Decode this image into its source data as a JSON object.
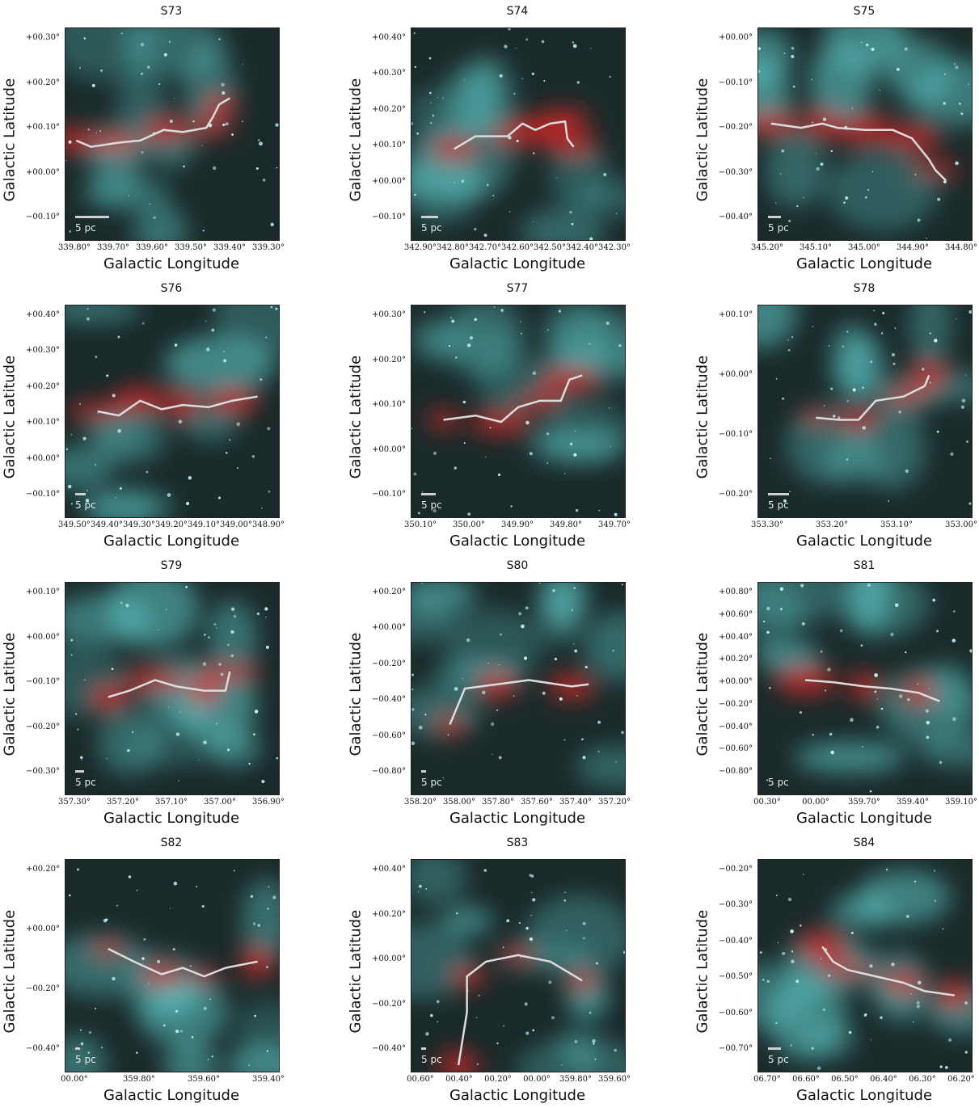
{
  "figure": {
    "xlabel": "Galactic Longitude",
    "ylabel": "Galactic Latitude",
    "scale_label": "5 pc"
  },
  "panels": [
    {
      "title": "S73",
      "xticks": [
        "339.80°",
        "339.70°",
        "339.60°",
        "339.50°",
        "339.40°",
        "339.30°"
      ],
      "yticks": [
        "+00.30°",
        "+00.20°",
        "+00.10°",
        "+00.00°",
        "−00.10°"
      ],
      "scale_frac": 0.16
    },
    {
      "title": "S74",
      "xticks": [
        "342.90°",
        "342.80°",
        "342.70°",
        "342.60°",
        "342.50°",
        "342.40°",
        "342.30°"
      ],
      "yticks": [
        "+00.40°",
        "+00.30°",
        "+00.20°",
        "+00.10°",
        "+00.00°",
        "−00.10°"
      ],
      "scale_frac": 0.08
    },
    {
      "title": "S75",
      "xticks": [
        "345.20°",
        "345.10°",
        "345.00°",
        "344.90°",
        "344.80°"
      ],
      "yticks": [
        "+00.00°",
        "−00.10°",
        "−00.20°",
        "−00.30°",
        "−00.40°"
      ],
      "scale_frac": 0.06
    },
    {
      "title": "S76",
      "xticks": [
        "349.50°",
        "349.40°",
        "349.30°",
        "349.20°",
        "349.10°",
        "349.00°",
        "348.90°"
      ],
      "yticks": [
        "+00.40°",
        "+00.30°",
        "+00.20°",
        "+00.10°",
        "+00.00°",
        "−00.10°"
      ],
      "scale_frac": 0.05
    },
    {
      "title": "S77",
      "xticks": [
        "350.10°",
        "350.00°",
        "349.90°",
        "349.80°",
        "349.70°"
      ],
      "yticks": [
        "+00.30°",
        "+00.20°",
        "+00.10°",
        "+00.00°",
        "−00.10°"
      ],
      "scale_frac": 0.07
    },
    {
      "title": "S78",
      "xticks": [
        "353.30°",
        "353.20°",
        "353.10°",
        "353.00°"
      ],
      "yticks": [
        "+00.10°",
        "+00.00°",
        "−00.10°",
        "−00.20°"
      ],
      "scale_frac": 0.1
    },
    {
      "title": "S79",
      "xticks": [
        "357.30°",
        "357.20°",
        "357.10°",
        "357.00°",
        "356.90°"
      ],
      "yticks": [
        "+00.10°",
        "+00.00°",
        "−00.10°",
        "−00.20°",
        "−00.30°"
      ],
      "scale_frac": 0.04
    },
    {
      "title": "S80",
      "xticks": [
        "358.20°",
        "358.00°",
        "357.80°",
        "357.60°",
        "357.40°",
        "357.20°"
      ],
      "yticks": [
        "+00.20°",
        "+00.00°",
        "−00.20°",
        "−00.40°",
        "−00.60°",
        "−00.80°"
      ],
      "scale_frac": 0.02
    },
    {
      "title": "S81",
      "xticks": [
        "00.30°",
        "00.00°",
        "359.70°",
        "359.40°",
        "359.10°"
      ],
      "yticks": [
        "+00.80°",
        "+00.60°",
        "+00.40°",
        "+00.20°",
        "+00.00°",
        "−00.20°",
        "−00.40°",
        "−00.60°",
        "−00.80°"
      ],
      "scale_frac": 0.0
    },
    {
      "title": "S82",
      "xticks": [
        "00.00°",
        "359.80°",
        "359.60°",
        "359.40°"
      ],
      "yticks": [
        "+00.20°",
        "+00.00°",
        "−00.20°",
        "−00.40°"
      ],
      "scale_frac": 0.02
    },
    {
      "title": "S83",
      "xticks": [
        "00.60°",
        "00.40°",
        "00.20°",
        "00.00°",
        "359.80°",
        "359.60°"
      ],
      "yticks": [
        "+00.40°",
        "+00.20°",
        "+00.00°",
        "−00.20°",
        "−00.40°"
      ],
      "scale_frac": 0.02
    },
    {
      "title": "S84",
      "xticks": [
        "06.70°",
        "06.60°",
        "06.50°",
        "06.40°",
        "06.30°",
        "06.20°"
      ],
      "yticks": [
        "−00.20°",
        "−00.30°",
        "−00.40°",
        "−00.50°",
        "−00.60°",
        "−00.70°"
      ],
      "scale_frac": 0.06
    }
  ],
  "colors": {
    "background": "#1a2a2a",
    "cyan": "#5ec8c8",
    "red": "#d82828",
    "spine": "#dcdcdc"
  },
  "spines": [
    [
      [
        0.05,
        0.53
      ],
      [
        0.12,
        0.56
      ],
      [
        0.25,
        0.54
      ],
      [
        0.35,
        0.53
      ],
      [
        0.46,
        0.48
      ],
      [
        0.55,
        0.49
      ],
      [
        0.66,
        0.47
      ],
      [
        0.69,
        0.42
      ],
      [
        0.72,
        0.36
      ],
      [
        0.77,
        0.33
      ]
    ],
    [
      [
        0.2,
        0.57
      ],
      [
        0.3,
        0.51
      ],
      [
        0.45,
        0.51
      ],
      [
        0.52,
        0.45
      ],
      [
        0.58,
        0.48
      ],
      [
        0.65,
        0.45
      ],
      [
        0.72,
        0.44
      ],
      [
        0.73,
        0.52
      ],
      [
        0.76,
        0.56
      ]
    ],
    [
      [
        0.06,
        0.45
      ],
      [
        0.2,
        0.47
      ],
      [
        0.3,
        0.45
      ],
      [
        0.37,
        0.47
      ],
      [
        0.5,
        0.48
      ],
      [
        0.63,
        0.48
      ],
      [
        0.72,
        0.52
      ],
      [
        0.8,
        0.62
      ],
      [
        0.83,
        0.67
      ],
      [
        0.88,
        0.72
      ]
    ],
    [
      [
        0.15,
        0.5
      ],
      [
        0.25,
        0.52
      ],
      [
        0.35,
        0.45
      ],
      [
        0.45,
        0.49
      ],
      [
        0.55,
        0.47
      ],
      [
        0.67,
        0.48
      ],
      [
        0.78,
        0.45
      ],
      [
        0.9,
        0.43
      ]
    ],
    [
      [
        0.15,
        0.54
      ],
      [
        0.3,
        0.52
      ],
      [
        0.42,
        0.55
      ],
      [
        0.5,
        0.48
      ],
      [
        0.6,
        0.45
      ],
      [
        0.7,
        0.45
      ],
      [
        0.74,
        0.35
      ],
      [
        0.8,
        0.33
      ]
    ],
    [
      [
        0.27,
        0.53
      ],
      [
        0.38,
        0.54
      ],
      [
        0.47,
        0.54
      ],
      [
        0.55,
        0.45
      ],
      [
        0.68,
        0.43
      ],
      [
        0.78,
        0.38
      ],
      [
        0.8,
        0.33
      ]
    ],
    [
      [
        0.2,
        0.54
      ],
      [
        0.3,
        0.51
      ],
      [
        0.42,
        0.46
      ],
      [
        0.52,
        0.49
      ],
      [
        0.65,
        0.51
      ],
      [
        0.75,
        0.51
      ],
      [
        0.77,
        0.42
      ]
    ],
    [
      [
        0.18,
        0.67
      ],
      [
        0.25,
        0.5
      ],
      [
        0.4,
        0.48
      ],
      [
        0.55,
        0.46
      ],
      [
        0.75,
        0.49
      ],
      [
        0.83,
        0.48
      ]
    ],
    [
      [
        0.22,
        0.46
      ],
      [
        0.35,
        0.47
      ],
      [
        0.5,
        0.49
      ],
      [
        0.62,
        0.5
      ],
      [
        0.75,
        0.52
      ],
      [
        0.85,
        0.56
      ]
    ],
    [
      [
        0.2,
        0.42
      ],
      [
        0.32,
        0.48
      ],
      [
        0.45,
        0.54
      ],
      [
        0.55,
        0.51
      ],
      [
        0.65,
        0.55
      ],
      [
        0.75,
        0.51
      ],
      [
        0.9,
        0.48
      ]
    ],
    [
      [
        0.22,
        0.97
      ],
      [
        0.26,
        0.72
      ],
      [
        0.26,
        0.55
      ],
      [
        0.35,
        0.48
      ],
      [
        0.5,
        0.45
      ],
      [
        0.65,
        0.48
      ],
      [
        0.8,
        0.57
      ]
    ],
    [
      [
        0.3,
        0.41
      ],
      [
        0.35,
        0.48
      ],
      [
        0.42,
        0.52
      ],
      [
        0.55,
        0.55
      ],
      [
        0.68,
        0.58
      ],
      [
        0.78,
        0.62
      ],
      [
        0.92,
        0.64
      ]
    ]
  ]
}
